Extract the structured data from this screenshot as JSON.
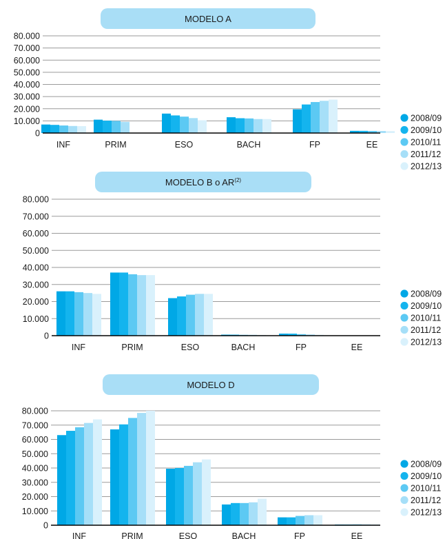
{
  "colors": {
    "pill": "#a9def6",
    "grid": "#9a9a9a",
    "axis": "#000000",
    "series": [
      "#00a8e6",
      "#14b4ee",
      "#5cc9f3",
      "#a6dff8",
      "#d9f1fc"
    ]
  },
  "chart_data": [
    {
      "type": "bar",
      "title": "MODELO A",
      "title_superscript": "",
      "categories": [
        "INF",
        "PRIM",
        "ESO",
        "BACH",
        "FP",
        "EE"
      ],
      "ylim": [
        0,
        80000
      ],
      "yticks": [
        "0",
        "10.000",
        "20.000",
        "30.000",
        "40.000",
        "50.000",
        "60.000",
        "70.000",
        "80.000"
      ],
      "grid": true,
      "legend_position": "right",
      "series": [
        {
          "name": "2008/09",
          "values": [
            7000,
            11000,
            16000,
            13000,
            19500,
            1800
          ]
        },
        {
          "name": "2009/10",
          "values": [
            6700,
            10200,
            14500,
            12200,
            23500,
            1800
          ]
        },
        {
          "name": "2010/11",
          "values": [
            6200,
            10000,
            13500,
            12000,
            25500,
            1700
          ]
        },
        {
          "name": "2011/12",
          "values": [
            5800,
            9200,
            12300,
            11500,
            26500,
            1700
          ]
        },
        {
          "name": "2012/13",
          "values": [
            5700,
            0,
            10500,
            11500,
            27500,
            1600
          ]
        }
      ]
    },
    {
      "type": "bar",
      "title": "MODELO B o AR",
      "title_superscript": "(2)",
      "categories": [
        "INF",
        "PRIM",
        "ESO",
        "BACH",
        "FP",
        "EE"
      ],
      "ylim": [
        0,
        80000
      ],
      "yticks": [
        "0",
        "10.000",
        "20.000",
        "30.000",
        "40.000",
        "50.000",
        "60.000",
        "70.000",
        "80.000"
      ],
      "grid": true,
      "legend_position": "right",
      "series": [
        {
          "name": "2008/09",
          "values": [
            26000,
            37000,
            22000,
            600,
            1200,
            0
          ]
        },
        {
          "name": "2009/10",
          "values": [
            26000,
            37000,
            23000,
            600,
            1200,
            0
          ]
        },
        {
          "name": "2010/11",
          "values": [
            25500,
            36000,
            24000,
            500,
            900,
            0
          ]
        },
        {
          "name": "2011/12",
          "values": [
            25000,
            35500,
            24500,
            500,
            700,
            0
          ]
        },
        {
          "name": "2012/13",
          "values": [
            24500,
            35500,
            24500,
            400,
            500,
            0
          ]
        }
      ]
    },
    {
      "type": "bar",
      "title": "MODELO D",
      "title_superscript": "",
      "categories": [
        "INF",
        "PRIM",
        "ESO",
        "BACH",
        "FP",
        "EE"
      ],
      "ylim": [
        0,
        80000
      ],
      "yticks": [
        "0",
        "10.000",
        "20.000",
        "30.000",
        "40.000",
        "50.000",
        "60.000",
        "70.000",
        "80.000"
      ],
      "grid": true,
      "legend_position": "right",
      "series": [
        {
          "name": "2008/09",
          "values": [
            63000,
            67000,
            39500,
            14500,
            5500,
            500
          ]
        },
        {
          "name": "2009/10",
          "values": [
            66000,
            70500,
            40000,
            15500,
            5500,
            500
          ]
        },
        {
          "name": "2010/11",
          "values": [
            68500,
            75000,
            41500,
            15500,
            6500,
            600
          ]
        },
        {
          "name": "2011/12",
          "values": [
            71500,
            78500,
            44000,
            16000,
            7000,
            600
          ]
        },
        {
          "name": "2012/13",
          "values": [
            74000,
            80000,
            46000,
            18500,
            7000,
            600
          ]
        }
      ]
    }
  ]
}
